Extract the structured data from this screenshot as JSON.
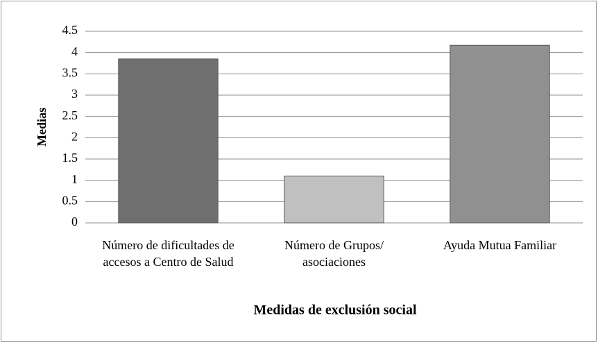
{
  "chart_data": {
    "type": "bar",
    "categories": [
      "Número de dificultades de accesos a Centro de Salud",
      "Número de Grupos/ asociaciones",
      "Ayuda Mutua Familiar"
    ],
    "values": [
      3.85,
      1.1,
      4.17
    ],
    "colors": [
      "#6f6f6f",
      "#c0c0c0",
      "#909090"
    ],
    "ylabel": "Medias",
    "xlabel": "Medidas de exclusión social",
    "ylim": [
      0,
      4.5
    ],
    "yticks": [
      0,
      0.5,
      1,
      1.5,
      2,
      2.5,
      3,
      3.5,
      4,
      4.5
    ],
    "grid": true
  }
}
